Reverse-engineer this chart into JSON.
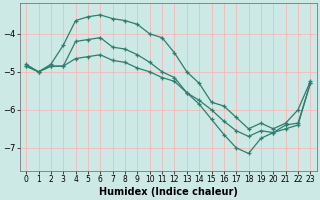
{
  "title": "",
  "xlabel": "Humidex (Indice chaleur)",
  "ylabel": "",
  "bg_color": "#cce9e5",
  "grid_color": "#f5b8b8",
  "line_color": "#2e7d6e",
  "xlim": [
    -0.5,
    23.5
  ],
  "ylim": [
    -7.6,
    -3.2
  ],
  "yticks": [
    -7,
    -6,
    -5,
    -4
  ],
  "xticks": [
    0,
    1,
    2,
    3,
    4,
    5,
    6,
    7,
    8,
    9,
    10,
    11,
    12,
    13,
    14,
    15,
    16,
    17,
    18,
    19,
    20,
    21,
    22,
    23
  ],
  "line1_x": [
    0,
    1,
    2,
    3,
    4,
    5,
    6,
    7,
    8,
    9,
    10,
    11,
    12,
    13,
    14,
    15,
    16,
    17,
    18,
    19,
    20,
    21,
    22,
    23
  ],
  "line1_y": [
    -4.8,
    -5.0,
    -4.8,
    -4.3,
    -3.65,
    -3.55,
    -3.5,
    -3.6,
    -3.65,
    -3.75,
    -4.0,
    -4.1,
    -4.5,
    -5.0,
    -5.3,
    -5.8,
    -5.9,
    -6.2,
    -6.5,
    -6.35,
    -6.5,
    -6.35,
    -6.0,
    -5.25
  ],
  "line2_x": [
    0,
    1,
    2,
    3,
    4,
    5,
    6,
    7,
    8,
    9,
    10,
    11,
    12,
    13,
    14,
    15,
    16,
    17,
    18,
    19,
    20,
    21,
    22,
    23
  ],
  "line2_y": [
    -4.85,
    -5.0,
    -4.85,
    -4.85,
    -4.2,
    -4.15,
    -4.1,
    -4.35,
    -4.4,
    -4.55,
    -4.75,
    -5.0,
    -5.15,
    -5.55,
    -5.85,
    -6.25,
    -6.65,
    -7.0,
    -7.15,
    -6.75,
    -6.6,
    -6.4,
    -6.35,
    -5.3
  ],
  "line3_x": [
    0,
    1,
    2,
    3,
    4,
    5,
    6,
    7,
    8,
    9,
    10,
    11,
    12,
    13,
    14,
    15,
    16,
    17,
    18,
    19,
    20,
    21,
    22,
    23
  ],
  "line3_y": [
    -4.85,
    -5.0,
    -4.85,
    -4.85,
    -4.65,
    -4.6,
    -4.55,
    -4.7,
    -4.75,
    -4.9,
    -5.0,
    -5.15,
    -5.25,
    -5.55,
    -5.75,
    -6.0,
    -6.3,
    -6.55,
    -6.7,
    -6.55,
    -6.6,
    -6.5,
    -6.4,
    -5.3
  ],
  "xlabel_fontsize": 7,
  "tick_fontsize": 5.5,
  "line_width": 0.9,
  "marker_size": 3.0
}
